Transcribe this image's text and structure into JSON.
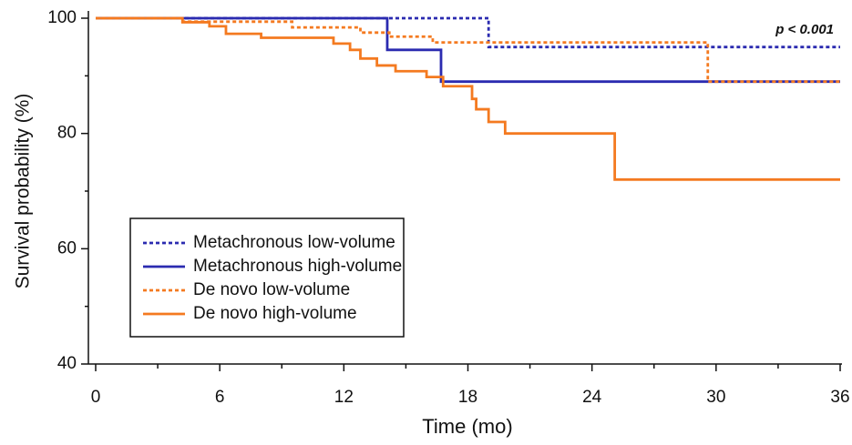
{
  "chart_data": {
    "type": "line",
    "drawstyle": "steps-post",
    "xlabel": "Time (mo)",
    "ylabel": "Survival probability (%)",
    "annotation": "p < 0.001",
    "xlim": [
      0,
      36
    ],
    "xticks": [
      0,
      6,
      12,
      18,
      24,
      30,
      36
    ],
    "xminorticks": [
      3,
      9,
      15,
      21,
      27,
      33
    ],
    "ylim": [
      40,
      100
    ],
    "yticks": [
      40,
      60,
      80,
      100
    ],
    "yminorticks": [
      50,
      70,
      90
    ],
    "legend": "lower left",
    "series": [
      {
        "name": "Metachronous low-volume",
        "color": "#2b2bb0",
        "dash": true,
        "x": [
          0,
          19,
          36
        ],
        "values": [
          100,
          95,
          95
        ]
      },
      {
        "name": "Metachronous high-volume",
        "color": "#2b2bb0",
        "dash": false,
        "x": [
          0,
          14.1,
          16.7,
          36
        ],
        "values": [
          100,
          94.5,
          89,
          89
        ]
      },
      {
        "name": "De novo low-volume",
        "color": "#f47a20",
        "dash": true,
        "x": [
          0,
          4.2,
          9.5,
          12.8,
          14.2,
          16.3,
          29.6,
          36
        ],
        "values": [
          100,
          99.4,
          98.4,
          97.5,
          96.8,
          95.8,
          89,
          89
        ]
      },
      {
        "name": "De novo high-volume",
        "color": "#f47a20",
        "dash": false,
        "x": [
          0,
          4.2,
          5.5,
          6.3,
          8,
          11.5,
          12.3,
          12.8,
          13.6,
          14.5,
          16,
          16.8,
          18.2,
          18.4,
          19,
          19.8,
          25.1,
          36
        ],
        "values": [
          100,
          99.3,
          98.6,
          97.3,
          96.6,
          95.6,
          94.5,
          93,
          91.8,
          90.8,
          89.8,
          88.2,
          86,
          84.2,
          82,
          80,
          72,
          72
        ]
      }
    ]
  }
}
